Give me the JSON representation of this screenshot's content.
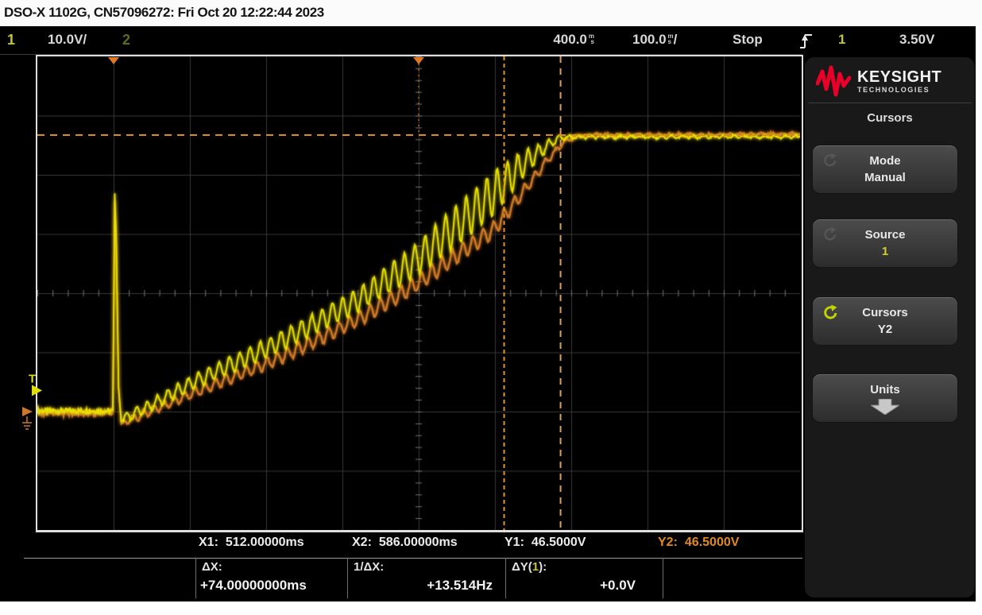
{
  "title_bar": {
    "text": "DSO-X 1102G, CN57096272: Fri Oct 20 12:22:44 2023"
  },
  "status_bar": {
    "ch1_number": "1",
    "ch1_scale": "10.0V/",
    "ch2_number": "2",
    "time_position": "400.0",
    "time_position_unit_top": "m",
    "time_position_unit_bottom": "s",
    "timebase": "100.0",
    "timebase_unit_top": "m",
    "timebase_unit_bottom": "s",
    "timebase_suffix": "/",
    "run_state": "Stop",
    "trigger_source": "1",
    "trigger_level": "3.50V"
  },
  "sidebar": {
    "brand_name": "KEYSIGHT",
    "brand_sub": "TECHNOLOGIES",
    "menu_title": "Cursors",
    "buttons": [
      {
        "label": "Mode",
        "value": "Manual"
      },
      {
        "label": "Source",
        "value": "1"
      },
      {
        "label": "Cursors",
        "value": "Y2"
      },
      {
        "label": "Units",
        "value": ""
      }
    ]
  },
  "cursor_readouts": {
    "x1_label": "X1:",
    "x1_value": "512.00000ms",
    "x2_label": "X2:",
    "x2_value": "586.00000ms",
    "y1_label": "Y1:",
    "y1_value": "46.5000V",
    "y2_label": "Y2:",
    "y2_value": "46.5000V",
    "dx_label": "ΔX:",
    "dx_value": "+74.00000000ms",
    "invdx_label": "1/ΔX:",
    "invdx_value": "+13.514Hz",
    "dy_label_pre": "ΔY(",
    "dy_channel": "1",
    "dy_label_post": "):",
    "dy_value": "+0.0V"
  },
  "markers": {
    "trigger_level_label": "T"
  },
  "colors": {
    "ch1_trace": "#e8e000",
    "ch2_trace": "#cf7a28",
    "cursor_orange": "#e08a20",
    "keysight_red": "#e90029",
    "ch2_dim": "#5a7020"
  },
  "chart_data": {
    "type": "line",
    "x_unit": "ms",
    "y_unit": "V",
    "timebase_per_div": "100.0ms",
    "vertical_scale_per_div": "10.0V",
    "trigger_delay_ms": 400,
    "ring_period_ms": 13.5,
    "cursors": {
      "x1_ms": 512,
      "x2_ms": 586,
      "y1_v": 46.5,
      "y2_v": 46.5,
      "dx_ms": 74.0,
      "inv_dx_hz": 13.514,
      "dy_v": 0.0,
      "trigger_level_v": 3.5
    },
    "series": [
      {
        "name": "channel-2-trace",
        "color": "#cf7a28",
        "pre_trigger_v": -0.25,
        "spike_peak_v": 35.5,
        "phase": 2.2,
        "width": 2.4,
        "base_ms_v": [
          [
            13,
            -1.9
          ],
          [
            111,
            3.4
          ],
          [
            215,
            8.8
          ],
          [
            320,
            15.5
          ],
          [
            393,
            21.1
          ],
          [
            455,
            26.8
          ],
          [
            497,
            30.5
          ],
          [
            538,
            37.2
          ],
          [
            570,
            42.6
          ],
          [
            591,
            45.6
          ],
          [
            612,
            46.6
          ],
          [
            900,
            46.8
          ]
        ],
        "ring_amp_ms_v": [
          [
            13,
            0.6
          ],
          [
            160,
            0.9
          ],
          [
            320,
            1.2
          ],
          [
            420,
            1.3
          ],
          [
            500,
            1.3
          ],
          [
            545,
            0.9
          ],
          [
            580,
            0.4
          ],
          [
            612,
            0.2
          ],
          [
            900,
            0.2
          ]
        ]
      },
      {
        "name": "channel-1-trace",
        "color": "#e8e000",
        "pre_trigger_v": 0.05,
        "spike_peak_v": 36.8,
        "phase": 0,
        "width": 2,
        "base_ms_v": [
          [
            13,
            -1.4
          ],
          [
            111,
            5.3
          ],
          [
            215,
            11.5
          ],
          [
            320,
            18.7
          ],
          [
            393,
            25.2
          ],
          [
            455,
            31.9
          ],
          [
            497,
            36.6
          ],
          [
            538,
            41.9
          ],
          [
            570,
            45.0
          ],
          [
            585,
            46.2
          ],
          [
            620,
            46.35
          ],
          [
            900,
            46.4
          ]
        ],
        "ring_amp_ms_v": [
          [
            13,
            0.8
          ],
          [
            160,
            1.4
          ],
          [
            320,
            1.9
          ],
          [
            395,
            2.7
          ],
          [
            445,
            3.4
          ],
          [
            497,
            3.7
          ],
          [
            528,
            2.6
          ],
          [
            558,
            1.2
          ],
          [
            580,
            0.5
          ],
          [
            600,
            0.25
          ],
          [
            900,
            0.2
          ]
        ]
      }
    ]
  }
}
